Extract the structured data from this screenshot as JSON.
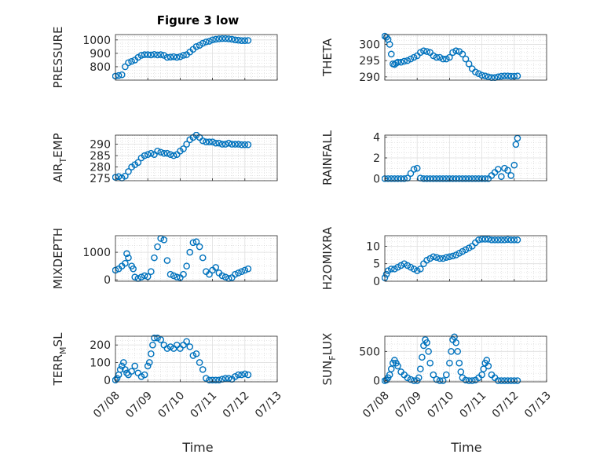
{
  "figure": {
    "title": "Figure 3 low",
    "xlabel": "Time"
  },
  "marker_color": "#0072bd",
  "chart_data": [
    {
      "type": "scatter",
      "ylabel": "PRESSURE",
      "ylabel_sub": "",
      "ylabel_post": "",
      "ylim": [
        700,
        1040
      ],
      "yticks": [
        800,
        900,
        1000
      ],
      "xlim": [
        0,
        5
      ],
      "xticklabels": [
        "07/08",
        "07/09",
        "07/10",
        "07/11",
        "07/12",
        "07/13"
      ],
      "show_xticklabels": false,
      "x": [
        0.0,
        0.1,
        0.2,
        0.3,
        0.4,
        0.5,
        0.6,
        0.7,
        0.8,
        0.9,
        1.0,
        1.1,
        1.2,
        1.3,
        1.4,
        1.5,
        1.6,
        1.7,
        1.8,
        1.9,
        2.0,
        2.1,
        2.2,
        2.3,
        2.4,
        2.5,
        2.6,
        2.7,
        2.8,
        2.9,
        3.0,
        3.1,
        3.2,
        3.3,
        3.4,
        3.5,
        3.6,
        3.7,
        3.8,
        3.9,
        4.0,
        4.1
      ],
      "y": [
        730,
        735,
        740,
        800,
        830,
        840,
        850,
        870,
        885,
        890,
        890,
        888,
        892,
        888,
        890,
        885,
        870,
        872,
        875,
        870,
        875,
        885,
        890,
        910,
        930,
        950,
        960,
        975,
        985,
        990,
        1000,
        1005,
        1008,
        1010,
        1010,
        1008,
        1005,
        1000,
        998,
        995,
        995,
        996
      ]
    },
    {
      "type": "scatter",
      "ylabel": "THETA",
      "ylabel_sub": "",
      "ylabel_post": "",
      "ylim": [
        289,
        303
      ],
      "yticks": [
        290,
        295,
        300
      ],
      "xlim": [
        0,
        5
      ],
      "xticklabels": [
        "07/08",
        "07/09",
        "07/10",
        "07/11",
        "07/12",
        "07/13"
      ],
      "show_xticklabels": false,
      "x": [
        0.0,
        0.05,
        0.1,
        0.15,
        0.2,
        0.25,
        0.3,
        0.35,
        0.4,
        0.5,
        0.6,
        0.7,
        0.8,
        0.9,
        1.0,
        1.1,
        1.2,
        1.3,
        1.4,
        1.5,
        1.6,
        1.7,
        1.8,
        1.9,
        2.0,
        2.1,
        2.2,
        2.3,
        2.4,
        2.5,
        2.6,
        2.7,
        2.8,
        2.9,
        3.0,
        3.1,
        3.2,
        3.3,
        3.4,
        3.5,
        3.6,
        3.7,
        3.8,
        3.9,
        4.0,
        4.1
      ],
      "y": [
        302.5,
        302.2,
        301.5,
        300,
        297,
        294,
        293.8,
        294.2,
        294.5,
        294.5,
        294.8,
        295,
        295.5,
        296,
        296.5,
        297.5,
        298,
        297.8,
        297.5,
        296.5,
        296,
        296,
        295.5,
        295.5,
        296,
        297.5,
        298,
        297.8,
        297,
        295.5,
        294,
        292.5,
        291.5,
        291,
        290.5,
        290.3,
        290,
        289.8,
        289.8,
        290,
        290.2,
        290.3,
        290.3,
        290.2,
        290.2,
        290.3
      ]
    },
    {
      "type": "scatter",
      "ylabel": "AIR",
      "ylabel_sub": "T",
      "ylabel_post": "EMP",
      "ylim": [
        274,
        294
      ],
      "yticks": [
        275,
        280,
        285,
        290
      ],
      "xlim": [
        0,
        5
      ],
      "xticklabels": [
        "07/08",
        "07/09",
        "07/10",
        "07/11",
        "07/12",
        "07/13"
      ],
      "show_xticklabels": false,
      "x": [
        0.0,
        0.1,
        0.2,
        0.3,
        0.4,
        0.5,
        0.6,
        0.7,
        0.8,
        0.9,
        1.0,
        1.1,
        1.2,
        1.3,
        1.4,
        1.5,
        1.6,
        1.7,
        1.8,
        1.9,
        2.0,
        2.1,
        2.2,
        2.3,
        2.4,
        2.5,
        2.6,
        2.7,
        2.8,
        2.9,
        3.0,
        3.1,
        3.2,
        3.3,
        3.4,
        3.5,
        3.6,
        3.7,
        3.8,
        3.9,
        4.0,
        4.1
      ],
      "y": [
        275.5,
        275.8,
        275.2,
        276,
        278,
        280,
        281,
        282,
        284,
        285,
        285.5,
        286,
        285.5,
        287,
        286.5,
        286,
        286,
        285.5,
        285,
        285.5,
        287,
        288,
        290,
        292,
        293,
        294,
        293,
        291.5,
        291,
        291,
        291,
        290.5,
        290.5,
        290,
        290,
        290.5,
        290,
        290,
        290,
        289.8,
        289.8,
        289.8
      ]
    },
    {
      "type": "scatter",
      "ylabel": "RAINFALL",
      "ylabel_sub": "",
      "ylabel_post": "",
      "ylim": [
        -0.2,
        4.2
      ],
      "yticks": [
        0,
        2,
        4
      ],
      "xlim": [
        0,
        5
      ],
      "xticklabels": [
        "07/08",
        "07/09",
        "07/10",
        "07/11",
        "07/12",
        "07/13"
      ],
      "show_xticklabels": false,
      "x": [
        0.0,
        0.1,
        0.2,
        0.3,
        0.4,
        0.5,
        0.6,
        0.7,
        0.8,
        0.9,
        1.0,
        1.1,
        1.2,
        1.3,
        1.4,
        1.5,
        1.6,
        1.7,
        1.8,
        1.9,
        2.0,
        2.1,
        2.2,
        2.3,
        2.4,
        2.5,
        2.6,
        2.7,
        2.8,
        2.9,
        3.0,
        3.1,
        3.2,
        3.3,
        3.4,
        3.5,
        3.6,
        3.7,
        3.8,
        3.9,
        4.0,
        4.05,
        4.1
      ],
      "y": [
        0,
        0,
        0,
        0,
        0,
        0,
        0,
        0.05,
        0.5,
        0.9,
        1.0,
        0.05,
        0,
        0,
        0,
        0,
        0,
        0,
        0,
        0,
        0,
        0,
        0,
        0,
        0,
        0,
        0,
        0,
        0,
        0,
        0,
        0,
        0,
        0.3,
        0.6,
        0.9,
        0.2,
        1.0,
        0.8,
        0.3,
        1.3,
        3.3,
        3.9
      ]
    },
    {
      "type": "scatter",
      "ylabel": "MIXDEPTH",
      "ylabel_sub": "",
      "ylabel_post": "",
      "ylim": [
        -50,
        1600
      ],
      "yticks": [
        0,
        1000
      ],
      "xlim": [
        0,
        5
      ],
      "xticklabels": [
        "07/08",
        "07/09",
        "07/10",
        "07/11",
        "07/12",
        "07/13"
      ],
      "show_xticklabels": false,
      "x": [
        0.0,
        0.1,
        0.2,
        0.3,
        0.35,
        0.4,
        0.5,
        0.55,
        0.6,
        0.7,
        0.8,
        0.9,
        1.0,
        1.1,
        1.2,
        1.3,
        1.4,
        1.5,
        1.6,
        1.7,
        1.8,
        1.9,
        2.0,
        2.1,
        2.2,
        2.3,
        2.4,
        2.5,
        2.6,
        2.7,
        2.8,
        2.9,
        3.0,
        3.1,
        3.2,
        3.3,
        3.4,
        3.5,
        3.6,
        3.7,
        3.8,
        3.9,
        4.0,
        4.1
      ],
      "y": [
        350,
        400,
        500,
        600,
        950,
        800,
        500,
        400,
        100,
        50,
        100,
        150,
        120,
        300,
        800,
        1200,
        1500,
        1450,
        700,
        200,
        150,
        100,
        80,
        200,
        500,
        1000,
        1350,
        1380,
        1200,
        800,
        300,
        200,
        350,
        450,
        250,
        150,
        100,
        50,
        80,
        200,
        250,
        300,
        350,
        400
      ]
    },
    {
      "type": "scatter",
      "ylabel": "H2OMIXRA",
      "ylabel_sub": "",
      "ylabel_post": "",
      "ylim": [
        0,
        13
      ],
      "yticks": [
        0,
        5,
        10
      ],
      "xlim": [
        0,
        5
      ],
      "xticklabels": [
        "07/08",
        "07/09",
        "07/10",
        "07/11",
        "07/12",
        "07/13"
      ],
      "show_xticklabels": false,
      "x": [
        0.0,
        0.05,
        0.1,
        0.2,
        0.3,
        0.4,
        0.5,
        0.6,
        0.7,
        0.8,
        0.9,
        1.0,
        1.1,
        1.2,
        1.3,
        1.4,
        1.5,
        1.6,
        1.7,
        1.8,
        1.9,
        2.0,
        2.1,
        2.2,
        2.3,
        2.4,
        2.5,
        2.6,
        2.7,
        2.8,
        2.9,
        3.0,
        3.1,
        3.2,
        3.3,
        3.4,
        3.5,
        3.6,
        3.7,
        3.8,
        3.9,
        4.0,
        4.1
      ],
      "y": [
        1,
        2,
        3,
        3.5,
        3.5,
        4,
        4.5,
        5,
        4.5,
        4,
        3.5,
        3,
        3.5,
        5,
        6,
        6.5,
        7,
        6.8,
        6.5,
        6.5,
        6.8,
        7,
        7.2,
        7.5,
        8,
        8.5,
        9,
        9.5,
        10,
        11,
        11.8,
        12,
        12,
        12,
        11.8,
        11.8,
        11.8,
        11.8,
        11.8,
        11.9,
        11.8,
        11.8,
        11.8
      ]
    },
    {
      "type": "scatter",
      "ylabel": "TERR",
      "ylabel_sub": "M",
      "ylabel_post": "SL",
      "ylim": [
        -10,
        250
      ],
      "yticks": [
        0,
        100,
        200
      ],
      "xlim": [
        0,
        5
      ],
      "xticklabels": [
        "07/08",
        "07/09",
        "07/10",
        "07/11",
        "07/12",
        "07/13"
      ],
      "show_xticklabels": true,
      "x": [
        0.0,
        0.05,
        0.1,
        0.15,
        0.2,
        0.25,
        0.3,
        0.35,
        0.4,
        0.5,
        0.6,
        0.7,
        0.8,
        0.9,
        1.0,
        1.05,
        1.1,
        1.15,
        1.2,
        1.3,
        1.4,
        1.5,
        1.6,
        1.7,
        1.8,
        1.9,
        2.0,
        2.1,
        2.2,
        2.3,
        2.4,
        2.5,
        2.6,
        2.7,
        2.8,
        2.9,
        3.0,
        3.1,
        3.2,
        3.3,
        3.4,
        3.5,
        3.6,
        3.7,
        3.8,
        3.9,
        4.0,
        4.1
      ],
      "y": [
        0,
        10,
        30,
        60,
        80,
        100,
        60,
        40,
        30,
        50,
        80,
        40,
        20,
        30,
        80,
        100,
        150,
        200,
        240,
        240,
        230,
        200,
        180,
        190,
        180,
        200,
        180,
        200,
        220,
        190,
        140,
        150,
        100,
        60,
        10,
        0,
        0,
        0,
        0,
        5,
        10,
        10,
        5,
        20,
        30,
        30,
        35,
        30
      ]
    },
    {
      "type": "scatter",
      "ylabel": "SUN",
      "ylabel_sub": "F",
      "ylabel_post": "LUX",
      "ylim": [
        -20,
        760
      ],
      "yticks": [
        0,
        500
      ],
      "xlim": [
        0,
        5
      ],
      "xticklabels": [
        "07/08",
        "07/09",
        "07/10",
        "07/11",
        "07/12",
        "07/13"
      ],
      "show_xticklabels": true,
      "x": [
        0.0,
        0.05,
        0.1,
        0.15,
        0.2,
        0.25,
        0.3,
        0.35,
        0.4,
        0.5,
        0.6,
        0.7,
        0.8,
        0.9,
        1.0,
        1.05,
        1.1,
        1.15,
        1.2,
        1.25,
        1.3,
        1.35,
        1.4,
        1.5,
        1.6,
        1.7,
        1.8,
        1.9,
        2.0,
        2.05,
        2.1,
        2.15,
        2.2,
        2.25,
        2.3,
        2.35,
        2.4,
        2.5,
        2.6,
        2.7,
        2.8,
        2.9,
        3.0,
        3.05,
        3.1,
        3.15,
        3.2,
        3.3,
        3.4,
        3.5,
        3.6,
        3.7,
        3.8,
        3.9,
        4.0,
        4.1
      ],
      "y": [
        0,
        10,
        50,
        100,
        200,
        300,
        350,
        300,
        250,
        150,
        100,
        50,
        20,
        0,
        0,
        50,
        200,
        400,
        600,
        700,
        650,
        500,
        300,
        100,
        20,
        0,
        0,
        100,
        300,
        500,
        700,
        750,
        650,
        500,
        300,
        150,
        50,
        10,
        0,
        0,
        10,
        50,
        100,
        200,
        300,
        350,
        250,
        100,
        50,
        0,
        0,
        0,
        0,
        0,
        0,
        0
      ]
    }
  ]
}
